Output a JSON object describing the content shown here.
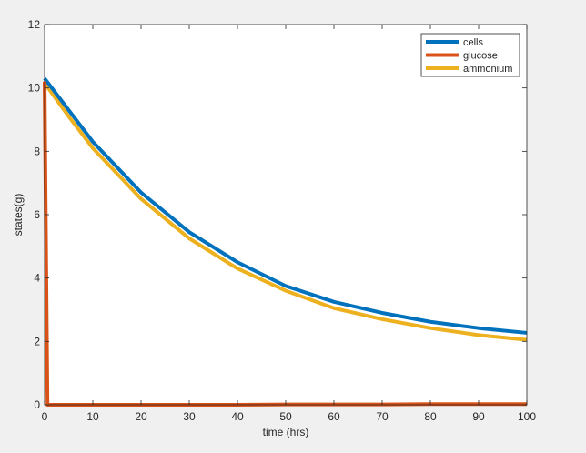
{
  "chart_data": {
    "type": "line",
    "xlabel": "time (hrs)",
    "ylabel": "states(g)",
    "xlim": [
      0,
      100
    ],
    "ylim": [
      0,
      12
    ],
    "xticks": [
      0,
      10,
      20,
      30,
      40,
      50,
      60,
      70,
      80,
      90,
      100
    ],
    "yticks": [
      0,
      2,
      4,
      6,
      8,
      10,
      12
    ],
    "legend_position": "top-right",
    "grid": false,
    "series": [
      {
        "name": "cells",
        "color": "#0072bd",
        "x": [
          0,
          0.5,
          5,
          10,
          20,
          30,
          40,
          50,
          60,
          70,
          80,
          90,
          100
        ],
        "y": [
          10.3,
          10.2,
          9.3,
          8.3,
          6.7,
          5.45,
          4.5,
          3.75,
          3.25,
          2.9,
          2.62,
          2.42,
          2.27
        ]
      },
      {
        "name": "glucose",
        "color": "#d95319",
        "x": [
          0,
          0.3,
          0.6,
          10,
          20,
          30,
          40,
          50,
          60,
          70,
          80,
          90,
          100
        ],
        "y": [
          10.2,
          5.0,
          0.0,
          0.0,
          0.0,
          0.0,
          0.0,
          0.01,
          0.01,
          0.01,
          0.02,
          0.02,
          0.02
        ]
      },
      {
        "name": "ammonium",
        "color": "#edb120",
        "x": [
          0,
          0.5,
          5,
          10,
          20,
          30,
          40,
          50,
          60,
          70,
          80,
          90,
          100
        ],
        "y": [
          10.15,
          10.05,
          9.1,
          8.1,
          6.5,
          5.25,
          4.3,
          3.6,
          3.05,
          2.7,
          2.42,
          2.2,
          2.05
        ]
      }
    ]
  }
}
